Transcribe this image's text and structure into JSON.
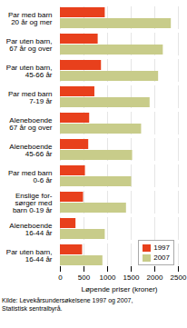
{
  "chart_data": {
    "type": "bar",
    "orientation": "horizontal",
    "categories": [
      "Par med barn\n20 år og mer",
      "Par uten barn,\n67 år og over",
      "Par uten barn,\n45-66 år",
      "Par med barn\n7-19 år",
      "Aleneboende\n67 år og over",
      "Aleneboende\n45-66 år",
      "Par med barn\n0-6 år",
      "Enslige for-\nsørger med\nbarn 0-19 år",
      "Aleneboende\n16-44 år",
      "Par uten barn,\n16-44 år"
    ],
    "series": [
      {
        "name": "1997",
        "color": "#e8401c",
        "values": [
          950,
          800,
          870,
          730,
          620,
          600,
          530,
          490,
          330,
          470
        ]
      },
      {
        "name": "2007",
        "color": "#c8cc8a",
        "values": [
          2350,
          2180,
          2080,
          1900,
          1720,
          1530,
          1510,
          1400,
          950,
          900
        ]
      }
    ],
    "xlabel": "Løpende priser (kroner)",
    "xlim": [
      0,
      2500
    ],
    "xticks": [
      0,
      500,
      1000,
      1500,
      2000,
      2500
    ],
    "grid": true,
    "legend": "lower right",
    "caption": "Kilde: Levekårsundersøkelsene 1997 og 2007,\nStatistisk sentralbyrå."
  }
}
